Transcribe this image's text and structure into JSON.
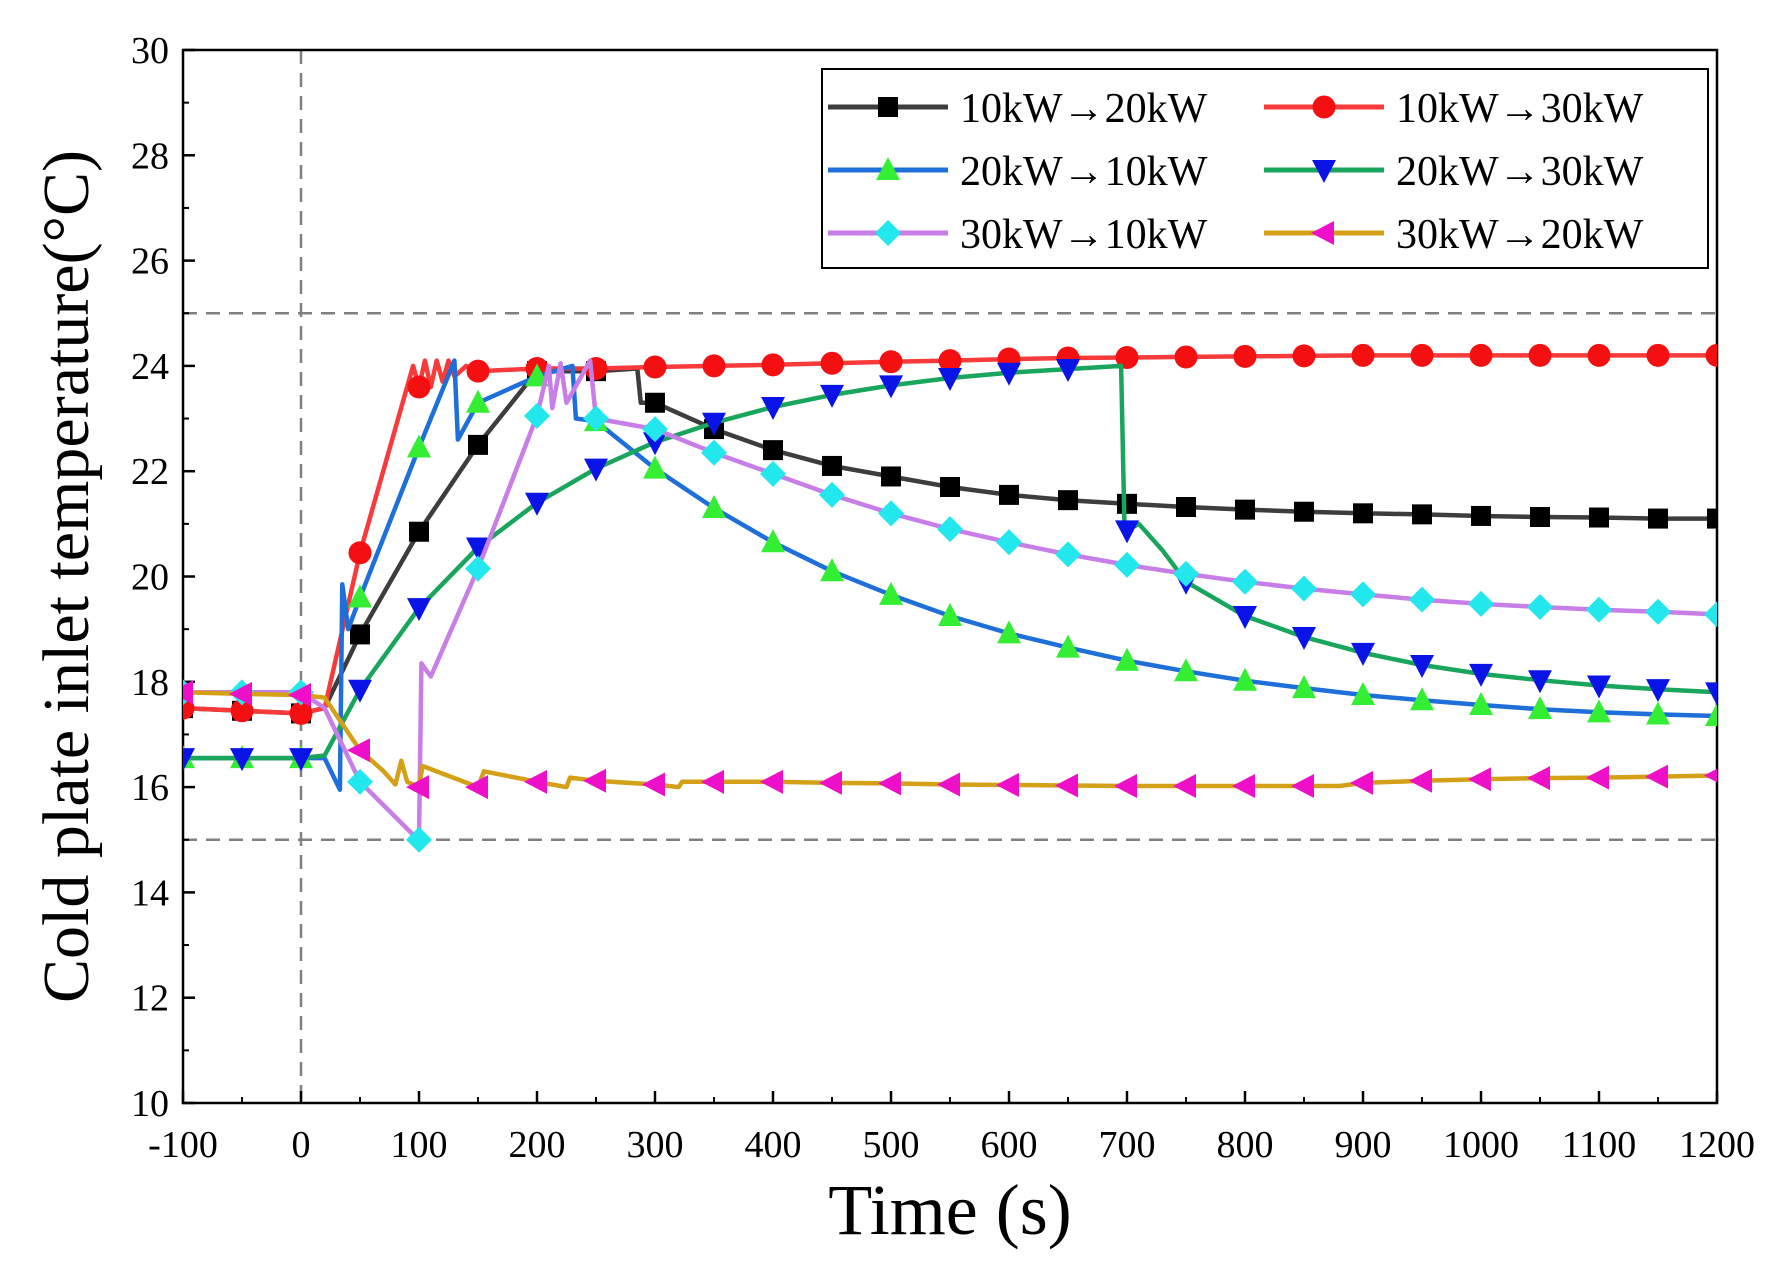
{
  "chart_data": {
    "type": "line",
    "xlabel": "Time (s)",
    "ylabel": "Cold plate inlet temperature(°C)",
    "xlim": [
      -100,
      1200
    ],
    "ylim": [
      10,
      30
    ],
    "xticks": [
      -100,
      0,
      100,
      200,
      300,
      400,
      500,
      600,
      700,
      800,
      900,
      1000,
      1100,
      1200
    ],
    "yticks": [
      10,
      12,
      14,
      16,
      18,
      20,
      22,
      24,
      26,
      28,
      30
    ],
    "reference_lines": {
      "horizontal": [
        25,
        15
      ],
      "vertical": [
        0
      ]
    },
    "grid": false,
    "legend_position": "top-right",
    "series": [
      {
        "name": "10kW→20kW",
        "color": "#3d3d3d",
        "marker": "square",
        "marker_color": "#000000",
        "points": [
          [
            -100,
            17.5
          ],
          [
            -50,
            17.45
          ],
          [
            0,
            17.4
          ],
          [
            20,
            17.5
          ],
          [
            50,
            18.9
          ],
          [
            100,
            20.85
          ],
          [
            150,
            22.5
          ],
          [
            200,
            23.9
          ],
          [
            250,
            23.9
          ],
          [
            285,
            23.95
          ],
          [
            288,
            23.3
          ],
          [
            300,
            23.3
          ],
          [
            350,
            22.8
          ],
          [
            400,
            22.4
          ],
          [
            450,
            22.1
          ],
          [
            500,
            21.9
          ],
          [
            550,
            21.7
          ],
          [
            600,
            21.55
          ],
          [
            650,
            21.45
          ],
          [
            700,
            21.38
          ],
          [
            750,
            21.32
          ],
          [
            800,
            21.27
          ],
          [
            850,
            21.23
          ],
          [
            900,
            21.2
          ],
          [
            950,
            21.18
          ],
          [
            1000,
            21.15
          ],
          [
            1050,
            21.13
          ],
          [
            1100,
            21.12
          ],
          [
            1150,
            21.1
          ],
          [
            1200,
            21.1
          ]
        ]
      },
      {
        "name": "10kW→30kW",
        "color": "#f73a3a",
        "marker": "circle",
        "marker_color": "#f41010",
        "points": [
          [
            -100,
            17.5
          ],
          [
            -50,
            17.45
          ],
          [
            0,
            17.4
          ],
          [
            20,
            17.5
          ],
          [
            50,
            20.45
          ],
          [
            95,
            24.0
          ],
          [
            100,
            23.6
          ],
          [
            105,
            24.1
          ],
          [
            110,
            23.6
          ],
          [
            115,
            24.1
          ],
          [
            120,
            23.7
          ],
          [
            125,
            24.1
          ],
          [
            130,
            23.8
          ],
          [
            140,
            24.0
          ],
          [
            150,
            23.9
          ],
          [
            200,
            23.95
          ],
          [
            250,
            23.95
          ],
          [
            300,
            23.98
          ],
          [
            350,
            24.0
          ],
          [
            400,
            24.02
          ],
          [
            450,
            24.05
          ],
          [
            500,
            24.08
          ],
          [
            550,
            24.1
          ],
          [
            600,
            24.13
          ],
          [
            650,
            24.15
          ],
          [
            700,
            24.16
          ],
          [
            750,
            24.17
          ],
          [
            800,
            24.18
          ],
          [
            850,
            24.19
          ],
          [
            900,
            24.2
          ],
          [
            950,
            24.2
          ],
          [
            1000,
            24.2
          ],
          [
            1050,
            24.2
          ],
          [
            1100,
            24.2
          ],
          [
            1150,
            24.2
          ],
          [
            1200,
            24.2
          ]
        ]
      },
      {
        "name": "20kW→10kW",
        "color": "#1e6fd9",
        "marker": "triangle-up",
        "marker_color": "#33ee33",
        "points": [
          [
            -100,
            16.55
          ],
          [
            -50,
            16.55
          ],
          [
            0,
            16.55
          ],
          [
            20,
            16.55
          ],
          [
            33,
            15.95
          ],
          [
            35,
            19.85
          ],
          [
            40,
            19.0
          ],
          [
            50,
            19.6
          ],
          [
            100,
            22.45
          ],
          [
            130,
            24.1
          ],
          [
            133,
            22.6
          ],
          [
            150,
            23.3
          ],
          [
            200,
            23.8
          ],
          [
            230,
            24.0
          ],
          [
            233,
            23.0
          ],
          [
            250,
            22.95
          ],
          [
            300,
            22.05
          ],
          [
            350,
            21.3
          ],
          [
            400,
            20.65
          ],
          [
            450,
            20.1
          ],
          [
            500,
            19.65
          ],
          [
            550,
            19.25
          ],
          [
            600,
            18.92
          ],
          [
            650,
            18.65
          ],
          [
            700,
            18.4
          ],
          [
            750,
            18.2
          ],
          [
            800,
            18.02
          ],
          [
            850,
            17.88
          ],
          [
            900,
            17.75
          ],
          [
            950,
            17.65
          ],
          [
            1000,
            17.56
          ],
          [
            1050,
            17.48
          ],
          [
            1100,
            17.42
          ],
          [
            1150,
            17.38
          ],
          [
            1200,
            17.35
          ]
        ]
      },
      {
        "name": "20kW→30kW",
        "color": "#1aa55d",
        "marker": "triangle-down",
        "marker_color": "#0a14e6",
        "points": [
          [
            -100,
            16.55
          ],
          [
            -50,
            16.55
          ],
          [
            0,
            16.55
          ],
          [
            20,
            16.6
          ],
          [
            50,
            17.85
          ],
          [
            100,
            19.4
          ],
          [
            150,
            20.55
          ],
          [
            200,
            21.4
          ],
          [
            250,
            22.05
          ],
          [
            300,
            22.55
          ],
          [
            350,
            22.92
          ],
          [
            400,
            23.22
          ],
          [
            450,
            23.45
          ],
          [
            500,
            23.63
          ],
          [
            550,
            23.77
          ],
          [
            600,
            23.87
          ],
          [
            650,
            23.94
          ],
          [
            695,
            24.0
          ],
          [
            698,
            20.85
          ],
          [
            710,
            21.0
          ],
          [
            730,
            20.5
          ],
          [
            750,
            19.9
          ],
          [
            800,
            19.25
          ],
          [
            850,
            18.85
          ],
          [
            900,
            18.55
          ],
          [
            950,
            18.32
          ],
          [
            1000,
            18.15
          ],
          [
            1050,
            18.03
          ],
          [
            1100,
            17.93
          ],
          [
            1150,
            17.86
          ],
          [
            1200,
            17.8
          ]
        ]
      },
      {
        "name": "30kW→10kW",
        "color": "#c77ee6",
        "marker": "diamond",
        "marker_color": "#22e8ee",
        "points": [
          [
            -100,
            17.8
          ],
          [
            -50,
            17.8
          ],
          [
            0,
            17.8
          ],
          [
            20,
            17.5
          ],
          [
            50,
            16.1
          ],
          [
            97,
            15.05
          ],
          [
            100,
            15.0
          ],
          [
            102,
            18.35
          ],
          [
            110,
            18.1
          ],
          [
            150,
            20.15
          ],
          [
            200,
            23.05
          ],
          [
            210,
            24.0
          ],
          [
            213,
            23.2
          ],
          [
            220,
            24.05
          ],
          [
            225,
            23.3
          ],
          [
            245,
            24.1
          ],
          [
            250,
            23.0
          ],
          [
            300,
            22.8
          ],
          [
            350,
            22.35
          ],
          [
            400,
            21.95
          ],
          [
            450,
            21.55
          ],
          [
            500,
            21.2
          ],
          [
            550,
            20.9
          ],
          [
            600,
            20.65
          ],
          [
            650,
            20.42
          ],
          [
            700,
            20.22
          ],
          [
            750,
            20.05
          ],
          [
            800,
            19.9
          ],
          [
            850,
            19.77
          ],
          [
            900,
            19.66
          ],
          [
            950,
            19.56
          ],
          [
            1000,
            19.48
          ],
          [
            1050,
            19.42
          ],
          [
            1100,
            19.37
          ],
          [
            1150,
            19.33
          ],
          [
            1200,
            19.28
          ]
        ]
      },
      {
        "name": "30kW→20kW",
        "color": "#d4a017",
        "marker": "triangle-left",
        "marker_color": "#ee10c8",
        "points": [
          [
            -100,
            17.8
          ],
          [
            -50,
            17.77
          ],
          [
            0,
            17.75
          ],
          [
            20,
            17.7
          ],
          [
            50,
            16.7
          ],
          [
            70,
            16.3
          ],
          [
            80,
            16.05
          ],
          [
            85,
            16.5
          ],
          [
            90,
            16.1
          ],
          [
            100,
            16.0
          ],
          [
            103,
            16.4
          ],
          [
            150,
            16.0
          ],
          [
            155,
            16.3
          ],
          [
            200,
            16.1
          ],
          [
            225,
            16.0
          ],
          [
            228,
            16.18
          ],
          [
            250,
            16.12
          ],
          [
            300,
            16.05
          ],
          [
            320,
            16.0
          ],
          [
            323,
            16.1
          ],
          [
            350,
            16.1
          ],
          [
            400,
            16.1
          ],
          [
            450,
            16.08
          ],
          [
            500,
            16.07
          ],
          [
            550,
            16.05
          ],
          [
            600,
            16.04
          ],
          [
            650,
            16.03
          ],
          [
            700,
            16.02
          ],
          [
            750,
            16.02
          ],
          [
            800,
            16.02
          ],
          [
            850,
            16.02
          ],
          [
            880,
            16.02
          ],
          [
            900,
            16.08
          ],
          [
            950,
            16.12
          ],
          [
            1000,
            16.15
          ],
          [
            1050,
            16.17
          ],
          [
            1100,
            16.18
          ],
          [
            1150,
            16.2
          ],
          [
            1200,
            16.22
          ]
        ]
      }
    ]
  }
}
